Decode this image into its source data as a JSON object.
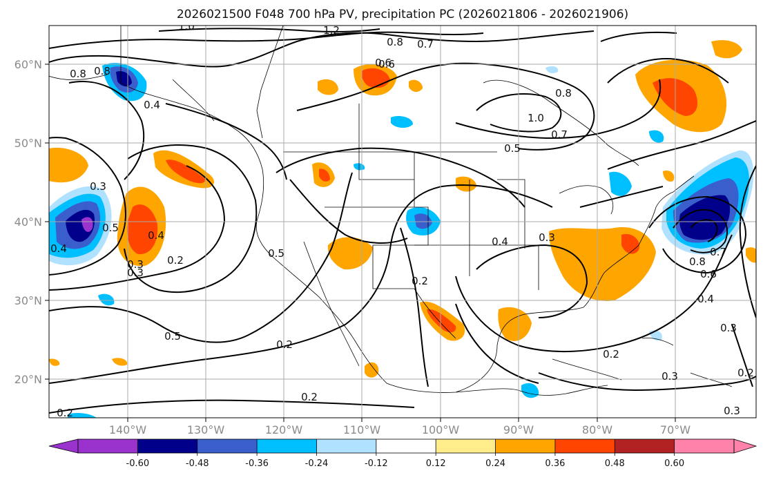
{
  "title": "2026021500 F048 700 hPa PV, precipitation PC (2026021806 - 2026021906)",
  "map": {
    "lon_labels": [
      "140°W",
      "130°W",
      "120°W",
      "110°W",
      "100°W",
      "90°W",
      "80°W",
      "70°W"
    ],
    "lat_labels": [
      "60°N",
      "50°N",
      "40°N",
      "30°N",
      "20°N"
    ],
    "contour_labels": [
      "0.2",
      "0.2",
      "0.3",
      "0.4",
      "0.5",
      "0.8",
      "1.0",
      "1.2",
      "0.7",
      "0.6",
      "0.8",
      "0.4",
      "0.3",
      "0.3",
      "0.5",
      "0.5",
      "0.2",
      "0.2",
      "0.4",
      "0.3",
      "0.2",
      "0.5",
      "0.7",
      "1.0",
      "0.8",
      "0.8",
      "0.6",
      "0.4",
      "0.3",
      "0.2",
      "0.3",
      "0.2",
      "0.3",
      "0.4",
      "0.8",
      "0.6",
      "0.7"
    ]
  },
  "colorbar": {
    "ticks": [
      "-0.60",
      "-0.48",
      "-0.36",
      "-0.24",
      "-0.12",
      "0.12",
      "0.24",
      "0.36",
      "0.48",
      "0.60"
    ],
    "colors": [
      "#9a32cd",
      "#00008b",
      "#3a5fcd",
      "#00bfff",
      "#b0e2ff",
      "#ffffff",
      "#ffec8b",
      "#ffa500",
      "#ff4500",
      "#b22222",
      "#ff82ab",
      "#ff82ab"
    ]
  }
}
